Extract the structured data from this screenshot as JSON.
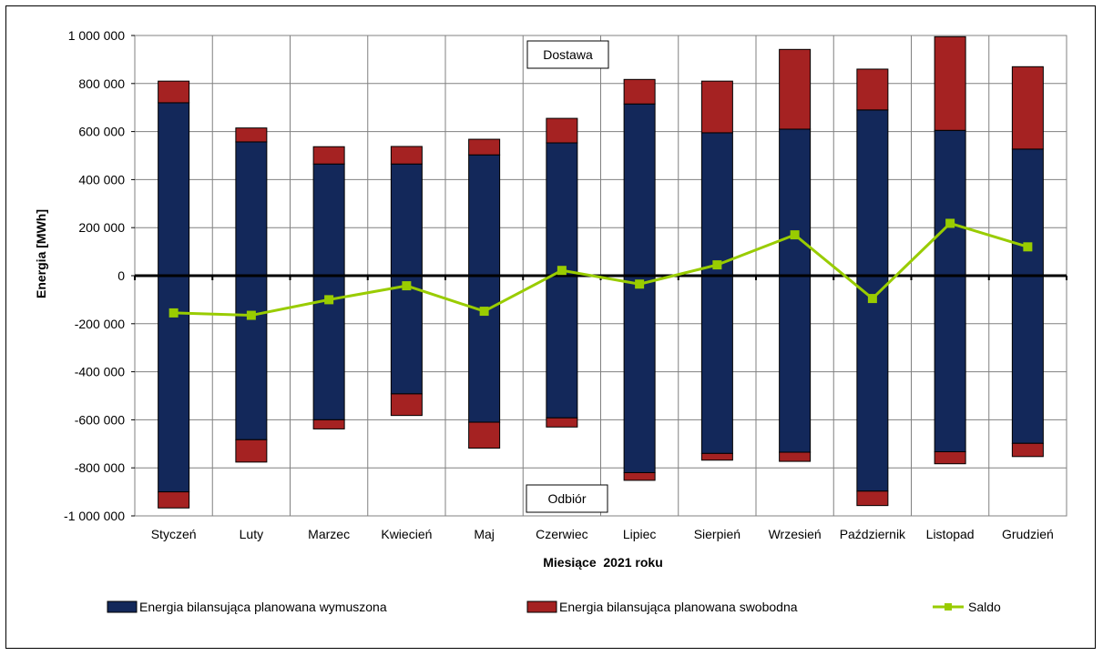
{
  "chart_data": {
    "type": "bar",
    "stacked": true,
    "categories": [
      "Styczeń",
      "Luty",
      "Marzec",
      "Kwiecień",
      "Maj",
      "Czerwiec",
      "Lipiec",
      "Sierpień",
      "Wrzesień",
      "Październik",
      "Listopad",
      "Grudzień"
    ],
    "xlabel": "Miesiące  2021 roku",
    "ylabel": "Energia [MWh]",
    "ylim": [
      -1000000,
      1000000
    ],
    "yticks": [
      1000000,
      800000,
      600000,
      400000,
      200000,
      0,
      -200000,
      -400000,
      -600000,
      -800000,
      -1000000
    ],
    "ytick_labels": [
      "1 000 000",
      "800 000",
      "600 000",
      "400 000",
      "200 000",
      "0",
      "-200 000",
      "-400 000",
      "-600 000",
      "-800 000",
      "-1 000 000"
    ],
    "grid": true,
    "legend_position": "bottom",
    "annotations": {
      "top": "Dostawa",
      "bottom": "Odbiór"
    },
    "series": [
      {
        "name": "Energia bilansująca planowana wymuszona",
        "color": "#13285A",
        "values_positive": [
          720000,
          557000,
          465000,
          465000,
          503000,
          553000,
          715000,
          595000,
          610000,
          690000,
          605000,
          527000
        ],
        "values_negative": [
          -900000,
          -683000,
          -600000,
          -492000,
          -610000,
          -592000,
          -820000,
          -740000,
          -735000,
          -897000,
          -733000,
          -698000
        ]
      },
      {
        "name": "Energia bilansująca planowana swobodna",
        "color": "#A52222",
        "values_positive": [
          90000,
          58000,
          72000,
          73000,
          65000,
          102000,
          102000,
          215000,
          332000,
          170000,
          390000,
          343000
        ],
        "values_negative": [
          -67000,
          -93000,
          -38000,
          -90000,
          -108000,
          -38000,
          -32000,
          -28000,
          -38000,
          -60000,
          -50000,
          -55000
        ]
      },
      {
        "name": "Saldo",
        "type": "line",
        "color": "#99CC00",
        "values": [
          -155000,
          -165000,
          -100000,
          -42000,
          -148000,
          22000,
          -35000,
          45000,
          170000,
          -95000,
          218000,
          120000
        ]
      }
    ]
  }
}
